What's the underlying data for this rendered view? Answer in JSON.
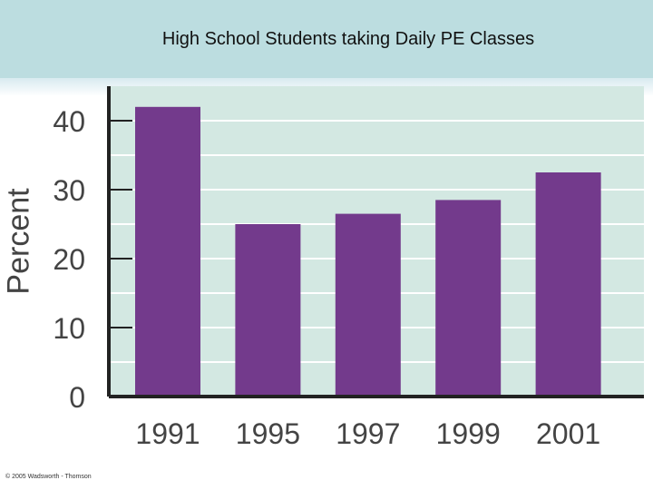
{
  "chart_data": {
    "type": "bar",
    "title": "High School Students taking Daily PE Classes",
    "ylabel": "Percent",
    "xlabel": "",
    "categories": [
      "1991",
      "1995",
      "1997",
      "1999",
      "2001"
    ],
    "values": [
      42,
      25,
      26.5,
      28.5,
      32.5
    ],
    "ylim": [
      0,
      45
    ],
    "yticks": [
      0,
      10,
      20,
      30,
      40
    ],
    "grid": true,
    "colors": {
      "bar": "#733a8c",
      "plot_bg": "#d3e8e2",
      "axis": "#222222",
      "grid": "#ffffff"
    }
  },
  "footer": {
    "copyright": "© 2005 Wadsworth - Thomson"
  }
}
